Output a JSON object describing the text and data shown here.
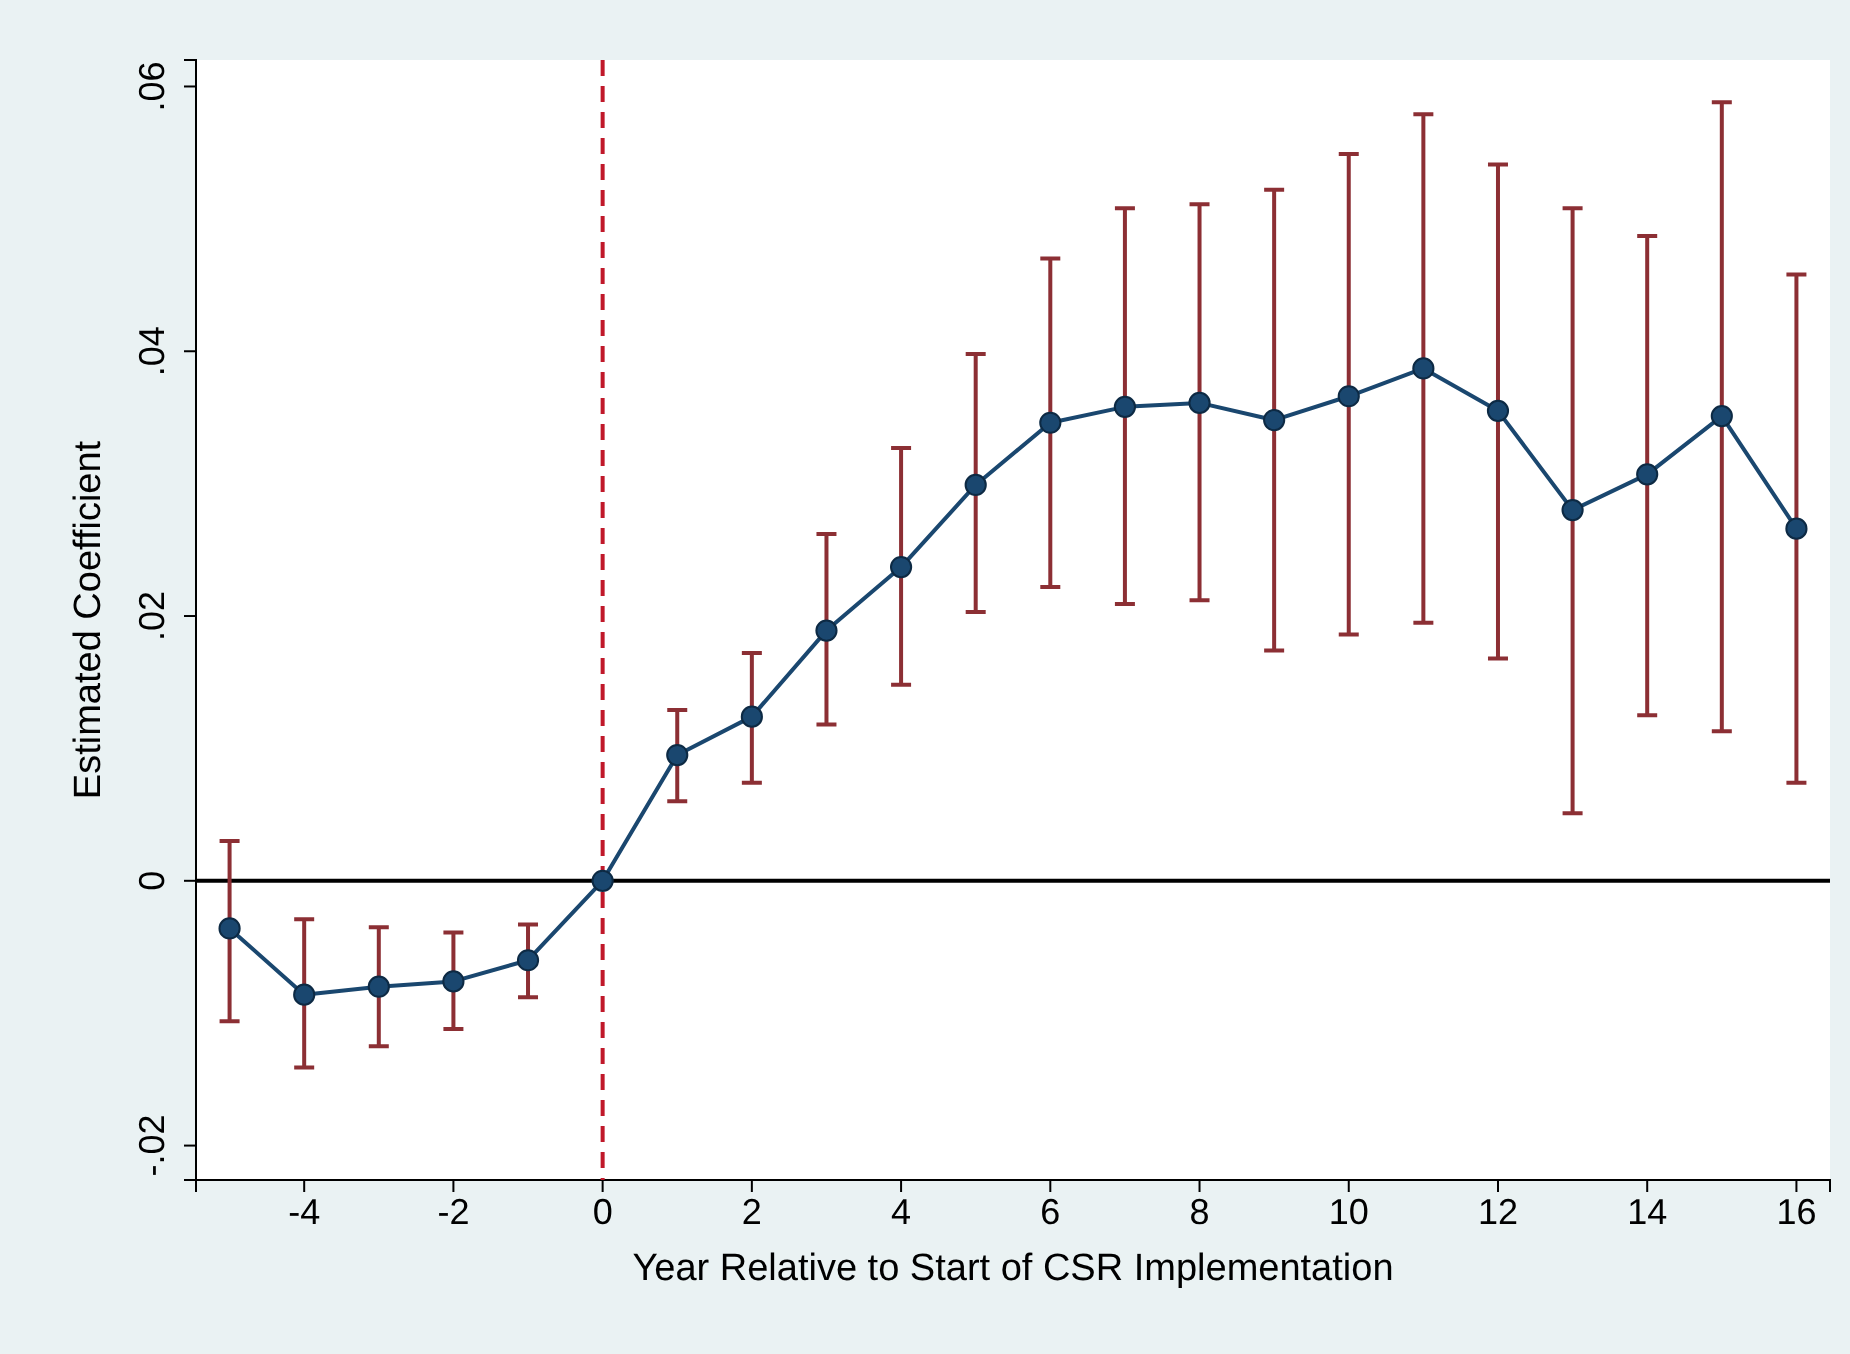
{
  "chart_data": {
    "type": "line",
    "xlabel": "Year Relative to Start of CSR Implementation",
    "ylabel": "Estimated Coefficient",
    "x": [
      -5,
      -4,
      -3,
      -2,
      -1,
      0,
      1,
      2,
      3,
      4,
      5,
      6,
      7,
      8,
      9,
      10,
      11,
      12,
      13,
      14,
      15,
      16
    ],
    "series": [
      {
        "color": "#1a476f",
        "values": [
          -0.0036,
          -0.0086,
          -0.008,
          -0.0076,
          -0.006,
          0,
          0.0095,
          0.0124,
          0.0189,
          0.0237,
          0.0299,
          0.0346,
          0.0358,
          0.0361,
          0.0348,
          0.0366,
          0.0387,
          0.0355,
          0.028,
          0.0307,
          0.0351,
          0.0266
        ],
        "errors": [
          [
            -0.0106,
            0.003
          ],
          [
            -0.0141,
            -0.0029
          ],
          [
            -0.0125,
            -0.0035
          ],
          [
            -0.0112,
            -0.0039
          ],
          [
            -0.0088,
            -0.0033
          ],
          null,
          [
            0.006,
            0.0129
          ],
          [
            0.0074,
            0.0172
          ],
          [
            0.0118,
            0.0262
          ],
          [
            0.0148,
            0.0327
          ],
          [
            0.0203,
            0.0398
          ],
          [
            0.0222,
            0.047
          ],
          [
            0.0209,
            0.0508
          ],
          [
            0.0212,
            0.0511
          ],
          [
            0.0174,
            0.0522
          ],
          [
            0.0186,
            0.0549
          ],
          [
            0.0195,
            0.0579
          ],
          [
            0.0168,
            0.0541
          ],
          [
            0.0051,
            0.0508
          ],
          [
            0.0125,
            0.0487
          ],
          [
            0.0113,
            0.0588
          ],
          [
            0.0074,
            0.0458
          ]
        ]
      }
    ],
    "xlim": [
      -5.45,
      16.45
    ],
    "xticks": [
      -4,
      -2,
      0,
      2,
      4,
      6,
      8,
      10,
      12,
      14,
      16
    ],
    "ylim": [
      -0.0226,
      0.062
    ],
    "yticks": [
      {
        "value": -0.02,
        "label": "-.02"
      },
      {
        "value": 0,
        "label": "0"
      },
      {
        "value": 0.02,
        "label": ".02"
      },
      {
        "value": 0.04,
        "label": ".04"
      },
      {
        "value": 0.06,
        "label": ".06"
      }
    ],
    "ref_lines": [
      {
        "axis": "y",
        "value": 0,
        "color": "#000000",
        "line_style": "solid"
      },
      {
        "axis": "x",
        "value": 0,
        "color": "#c0182a",
        "line_style": "dashed"
      }
    ],
    "marker": "circle",
    "line_style": "solid",
    "grid": false
  }
}
